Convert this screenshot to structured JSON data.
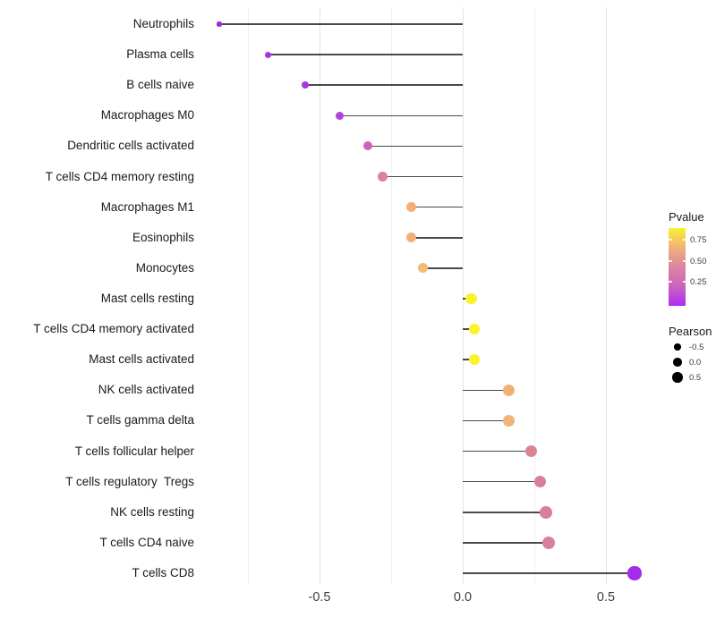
{
  "chart_data": {
    "type": "lollipop",
    "orientation": "horizontal",
    "baseline_value": 0,
    "x_axis": {
      "ticks": [
        {
          "value": -0.5,
          "label": "-0.5"
        },
        {
          "value": 0.0,
          "label": "0.0"
        },
        {
          "value": 0.5,
          "label": "0.5"
        }
      ],
      "gridline_values": [
        -0.75,
        -0.5,
        -0.25,
        0.0,
        0.25,
        0.5
      ],
      "range": [
        -0.92,
        0.67
      ]
    },
    "points": [
      {
        "label": "Neutrophils",
        "pearson": -0.85,
        "pvalue_est": 0.1,
        "color": "#9B2BD8"
      },
      {
        "label": "Plasma cells",
        "pearson": -0.68,
        "pvalue_est": 0.07,
        "color": "#A531E8"
      },
      {
        "label": "B cells naive",
        "pearson": -0.55,
        "pvalue_est": 0.08,
        "color": "#A636E3"
      },
      {
        "label": "Macrophages M0",
        "pearson": -0.43,
        "pvalue_est": 0.13,
        "color": "#B044DF"
      },
      {
        "label": "Dendritic cells activated",
        "pearson": -0.33,
        "pvalue_est": 0.33,
        "color": "#CE62BC"
      },
      {
        "label": "T cells CD4 memory resting",
        "pearson": -0.28,
        "pvalue_est": 0.44,
        "color": "#DB7FA4"
      },
      {
        "label": "Macrophages M1",
        "pearson": -0.18,
        "pvalue_est": 0.64,
        "color": "#F2B077"
      },
      {
        "label": "Eosinophils",
        "pearson": -0.18,
        "pvalue_est": 0.64,
        "color": "#F2B077"
      },
      {
        "label": "Monocytes",
        "pearson": -0.14,
        "pvalue_est": 0.7,
        "color": "#F0BE74"
      },
      {
        "label": "Mast cells resting",
        "pearson": 0.03,
        "pvalue_est": 0.88,
        "color": "#F8F32B"
      },
      {
        "label": "T cells CD4 memory activated",
        "pearson": 0.04,
        "pvalue_est": 0.88,
        "color": "#F8F32B"
      },
      {
        "label": "Mast cells activated",
        "pearson": 0.04,
        "pvalue_est": 0.87,
        "color": "#F8F32B"
      },
      {
        "label": "NK cells activated",
        "pearson": 0.16,
        "pvalue_est": 0.64,
        "color": "#F0B274"
      },
      {
        "label": "T cells gamma delta",
        "pearson": 0.16,
        "pvalue_est": 0.65,
        "color": "#F0B476"
      },
      {
        "label": "T cells follicular helper",
        "pearson": 0.24,
        "pvalue_est": 0.5,
        "color": "#DC8390"
      },
      {
        "label": "T cells regulatory  Tregs",
        "pearson": 0.27,
        "pvalue_est": 0.46,
        "color": "#D97F97"
      },
      {
        "label": "NK cells resting",
        "pearson": 0.29,
        "pvalue_est": 0.44,
        "color": "#D97E9D"
      },
      {
        "label": "T cells CD4 naive",
        "pearson": 0.3,
        "pvalue_est": 0.43,
        "color": "#D980A2"
      },
      {
        "label": "T cells CD8",
        "pearson": 0.6,
        "pvalue_est": 0.05,
        "color": "#A52BEA"
      }
    ]
  },
  "legend": {
    "pvalue": {
      "title": "Pvalue",
      "tick_labels": [
        "0.75",
        "0.50",
        "0.25"
      ],
      "gradient_bottom_to_top": [
        "#B02BF2",
        "#CC64BE",
        "#DC84A0",
        "#F0B277",
        "#F9F12F"
      ]
    },
    "pearson": {
      "title": "Pearson",
      "items": [
        {
          "label": "-0.5",
          "pearson": -0.5
        },
        {
          "label": "0.0",
          "pearson": 0.0
        },
        {
          "label": "0.5",
          "pearson": 0.5
        }
      ]
    }
  },
  "colors": {
    "segment": "#4a4a4a",
    "gridline_major": "#e3e3e3",
    "gridline_minor": "#f0f0f0",
    "axis_text": "#404040",
    "label_text": "#1a1a1a",
    "background": "#ffffff"
  }
}
